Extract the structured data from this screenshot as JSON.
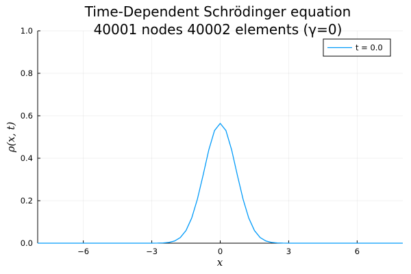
{
  "chart_data": {
    "type": "line",
    "title_line1": "Time-Dependent Schrödinger equation",
    "title_line2": "40001 nodes 40002 elements (γ=0)",
    "xlabel": "x",
    "ylabel": "ρ(x, t)",
    "xlim": [
      -8,
      8
    ],
    "ylim": [
      0,
      1
    ],
    "x_ticks": [
      -6,
      -3,
      0,
      3,
      6
    ],
    "x_tick_labels": [
      "−6",
      "−3",
      "0",
      "3",
      "6"
    ],
    "y_ticks": [
      0,
      0.2,
      0.4,
      0.6,
      0.8,
      1.0
    ],
    "y_tick_labels": [
      "0.0",
      "0.2",
      "0.4",
      "0.6",
      "0.8",
      "1.0"
    ],
    "grid": true,
    "legend_position": "top-right",
    "series": [
      {
        "name": "t = 0.0",
        "color": "#009af9",
        "x": [
          -8,
          -3.5,
          -3,
          -2.75,
          -2.5,
          -2.25,
          -2,
          -1.75,
          -1.5,
          -1.25,
          -1,
          -0.75,
          -0.5,
          -0.25,
          0,
          0.25,
          0.5,
          0.75,
          1,
          1.25,
          1.5,
          1.75,
          2,
          2.25,
          2.5,
          2.75,
          3,
          3.5,
          8
        ],
        "y": [
          0,
          0,
          0.0001,
          0.0003,
          0.0011,
          0.0036,
          0.0103,
          0.0264,
          0.0595,
          0.1184,
          0.2076,
          0.3206,
          0.4394,
          0.5304,
          0.5642,
          0.5304,
          0.4394,
          0.3206,
          0.2076,
          0.1184,
          0.0595,
          0.0264,
          0.0103,
          0.0036,
          0.0011,
          0.0003,
          0.0001,
          0,
          0
        ]
      }
    ]
  }
}
